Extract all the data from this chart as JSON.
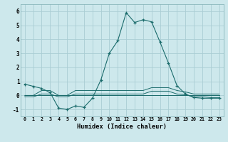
{
  "xlabel": "Humidex (Indice chaleur)",
  "bg_color": "#cde8ec",
  "grid_color": "#aacdd4",
  "line_color": "#1a6b6b",
  "xlim": [
    -0.5,
    23.5
  ],
  "ylim": [
    -1.5,
    6.5
  ],
  "yticks": [
    -1,
    0,
    1,
    2,
    3,
    4,
    5,
    6
  ],
  "xticks": [
    0,
    1,
    2,
    3,
    4,
    5,
    6,
    7,
    8,
    9,
    10,
    11,
    12,
    13,
    14,
    15,
    16,
    17,
    18,
    19,
    20,
    21,
    22,
    23
  ],
  "xtick_labels": [
    "0",
    "1",
    "2",
    "3",
    "4",
    "5",
    "6",
    "7",
    "8",
    "9",
    "10",
    "11",
    "12",
    "13",
    "14",
    "15",
    "16",
    "17",
    "18",
    "19",
    "20",
    "21",
    "22",
    "23"
  ],
  "series1_x": [
    0,
    1,
    2,
    3,
    4,
    5,
    6,
    7,
    8,
    9,
    10,
    11,
    12,
    13,
    14,
    15,
    16,
    17,
    18,
    19,
    20,
    21,
    22,
    23
  ],
  "series1_y": [
    0.8,
    0.65,
    0.5,
    0.2,
    -0.9,
    -1.0,
    -0.75,
    -0.85,
    -0.2,
    1.1,
    3.0,
    3.9,
    5.9,
    5.2,
    5.4,
    5.25,
    3.8,
    2.3,
    0.7,
    0.1,
    -0.15,
    -0.2,
    -0.2,
    -0.2
  ],
  "series2_x": [
    0,
    1,
    2,
    3,
    4,
    5,
    6,
    7,
    8,
    9,
    10,
    11,
    12,
    13,
    14,
    15,
    16,
    17,
    18,
    19,
    20,
    21,
    22,
    23
  ],
  "series2_y": [
    0.0,
    0.0,
    0.35,
    0.35,
    0.0,
    0.0,
    0.35,
    0.35,
    0.35,
    0.35,
    0.35,
    0.35,
    0.35,
    0.35,
    0.35,
    0.55,
    0.55,
    0.55,
    0.35,
    0.25,
    0.1,
    0.1,
    0.1,
    0.1
  ],
  "series3_x": [
    0,
    1,
    2,
    3,
    4,
    5,
    6,
    7,
    8,
    9,
    10,
    11,
    12,
    13,
    14,
    15,
    16,
    17,
    18,
    19,
    20,
    21,
    22,
    23
  ],
  "series3_y": [
    0.0,
    0.0,
    0.0,
    0.0,
    0.0,
    0.0,
    0.0,
    0.0,
    0.0,
    0.0,
    0.0,
    0.0,
    0.0,
    0.0,
    0.0,
    0.0,
    0.0,
    0.0,
    0.0,
    0.0,
    0.0,
    0.0,
    0.0,
    0.0
  ],
  "series4_x": [
    0,
    1,
    2,
    3,
    4,
    5,
    6,
    7,
    8,
    9,
    10,
    11,
    12,
    13,
    14,
    15,
    16,
    17,
    18,
    19,
    20,
    21,
    22,
    23
  ],
  "series4_y": [
    -0.1,
    -0.1,
    0.1,
    0.1,
    -0.1,
    -0.1,
    0.1,
    0.1,
    0.1,
    0.1,
    0.1,
    0.1,
    0.1,
    0.1,
    0.1,
    0.3,
    0.3,
    0.3,
    0.1,
    0.05,
    -0.1,
    -0.1,
    -0.15,
    -0.15
  ]
}
